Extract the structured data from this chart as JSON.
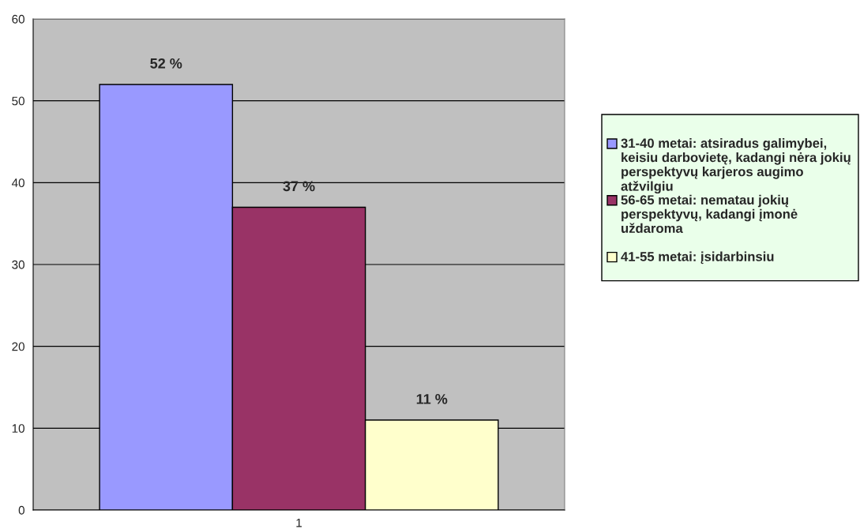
{
  "chart_data": {
    "type": "bar",
    "categories": [
      "1"
    ],
    "series": [
      {
        "name": "31-40 metai: atsiradus galimybei, keisiu darbovietę, kadangi nėra jokių perspektyvų karjeros augimo atžvilgiu",
        "color": "#9999ff",
        "values": [
          52
        ],
        "value_labels": [
          "52 %"
        ]
      },
      {
        "name": "56-65 metai: nematau jokių perspektyvų, kadangi įmonė uždaroma",
        "color": "#993366",
        "values": [
          37
        ],
        "value_labels": [
          "37 %"
        ]
      },
      {
        "name": "41-55 metai: įsidarbinsiu",
        "color": "#ffffcc",
        "values": [
          11
        ],
        "value_labels": [
          "11 %"
        ]
      }
    ],
    "ylim": [
      0,
      60
    ],
    "yticks": [
      0,
      10,
      20,
      30,
      40,
      50,
      60
    ],
    "grid": "y",
    "legend": "right"
  }
}
